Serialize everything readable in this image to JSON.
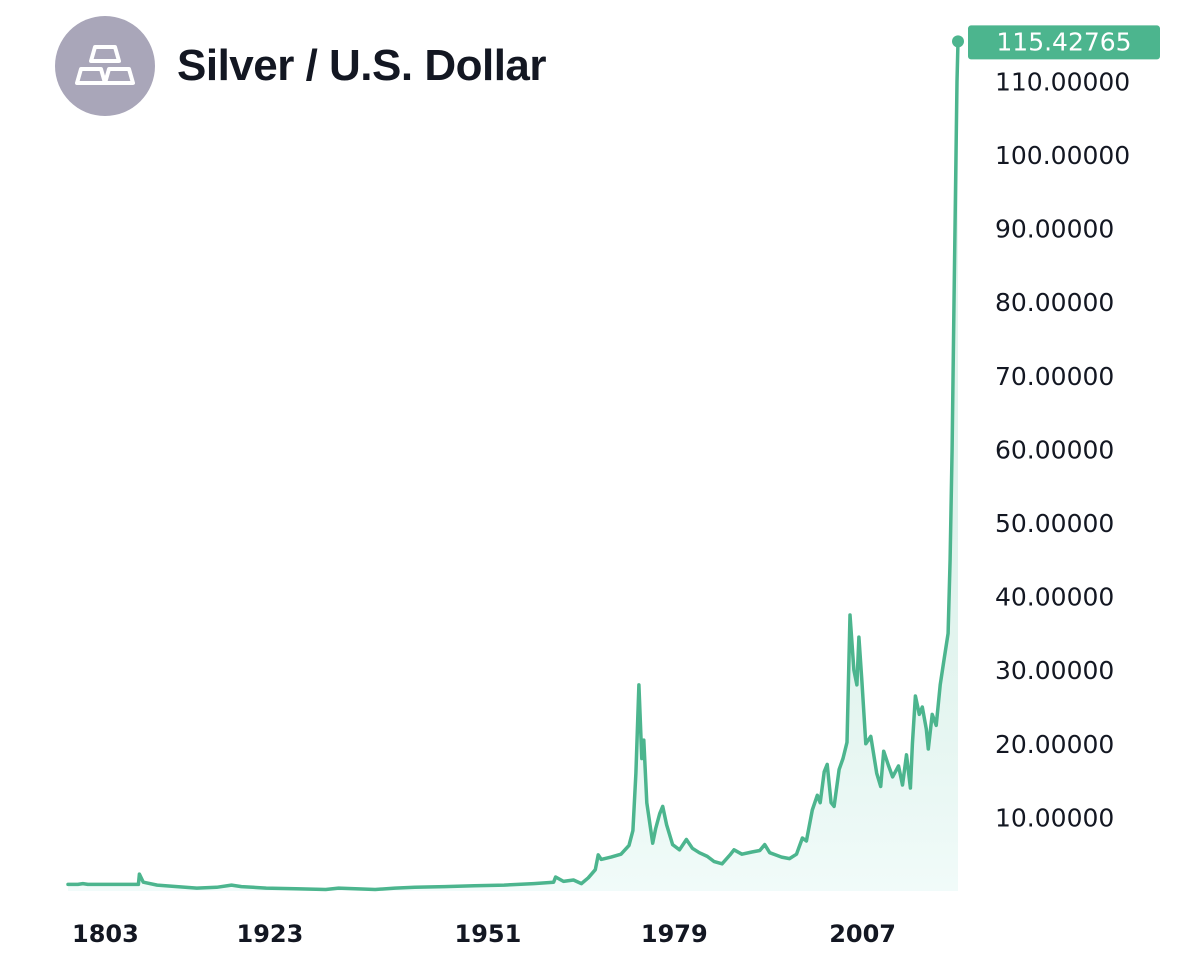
{
  "header": {
    "title": "Silver / U.S. Dollar",
    "icon": "silver-bars-icon"
  },
  "colors": {
    "line": "#4cb58e",
    "fill": "#e6f8f5",
    "label_bg": "#4cb58e",
    "logo_bg": "#a9a6b9"
  },
  "chart_data": {
    "type": "line",
    "title": "Silver / U.S. Dollar",
    "current_value_label": "115.42765",
    "current_value": 115.42765,
    "ylim": [
      0,
      115.43
    ],
    "yticks": [
      {
        "value": 10,
        "label": "10.00000"
      },
      {
        "value": 20,
        "label": "20.00000"
      },
      {
        "value": 30,
        "label": "30.00000"
      },
      {
        "value": 40,
        "label": "40.00000"
      },
      {
        "value": 50,
        "label": "50.00000"
      },
      {
        "value": 60,
        "label": "60.00000"
      },
      {
        "value": 70,
        "label": "70.00000"
      },
      {
        "value": 80,
        "label": "80.00000"
      },
      {
        "value": 90,
        "label": "90.00000"
      },
      {
        "value": 100,
        "label": "100.00000"
      },
      {
        "value": 110,
        "label": "110.00000"
      }
    ],
    "xticks": [
      {
        "index": 4,
        "label": "1803"
      },
      {
        "index": 170,
        "label": "1923"
      },
      {
        "index": 390,
        "label": "1951"
      },
      {
        "index": 578,
        "label": "1979"
      },
      {
        "index": 768,
        "label": "2007"
      }
    ],
    "series": [
      {
        "name": "Silver / U.S. Dollar",
        "points": [
          [
            0,
            0.9
          ],
          [
            10,
            0.9
          ],
          [
            15,
            1.0
          ],
          [
            20,
            0.9
          ],
          [
            60,
            0.9
          ],
          [
            71,
            0.9
          ],
          [
            72,
            2.3
          ],
          [
            76,
            1.2
          ],
          [
            90,
            0.8
          ],
          [
            110,
            0.6
          ],
          [
            130,
            0.4
          ],
          [
            150,
            0.5
          ],
          [
            165,
            0.8
          ],
          [
            175,
            0.6
          ],
          [
            200,
            0.4
          ],
          [
            230,
            0.3
          ],
          [
            260,
            0.2
          ],
          [
            273,
            0.4
          ],
          [
            290,
            0.3
          ],
          [
            310,
            0.2
          ],
          [
            330,
            0.4
          ],
          [
            350,
            0.5
          ],
          [
            380,
            0.6
          ],
          [
            410,
            0.7
          ],
          [
            440,
            0.8
          ],
          [
            470,
            1.0
          ],
          [
            490,
            1.2
          ],
          [
            492,
            1.9
          ],
          [
            500,
            1.3
          ],
          [
            510,
            1.5
          ],
          [
            518,
            1.0
          ],
          [
            525,
            1.8
          ],
          [
            532,
            2.9
          ],
          [
            535,
            4.9
          ],
          [
            538,
            4.3
          ],
          [
            548,
            4.6
          ],
          [
            558,
            5.0
          ],
          [
            566,
            6.2
          ],
          [
            570,
            8.2
          ],
          [
            573,
            16.0
          ],
          [
            576,
            28.0
          ],
          [
            579,
            18.0
          ],
          [
            581,
            20.5
          ],
          [
            584,
            12.0
          ],
          [
            590,
            6.5
          ],
          [
            593,
            8.5
          ],
          [
            597,
            10.5
          ],
          [
            600,
            11.5
          ],
          [
            604,
            9.0
          ],
          [
            610,
            6.3
          ],
          [
            617,
            5.6
          ],
          [
            624,
            7.0
          ],
          [
            630,
            5.8
          ],
          [
            637,
            5.2
          ],
          [
            645,
            4.7
          ],
          [
            652,
            4.0
          ],
          [
            660,
            3.7
          ],
          [
            668,
            4.9
          ],
          [
            672,
            5.6
          ],
          [
            680,
            5.0
          ],
          [
            690,
            5.3
          ],
          [
            698,
            5.5
          ],
          [
            703,
            6.3
          ],
          [
            708,
            5.2
          ],
          [
            714,
            4.9
          ],
          [
            720,
            4.6
          ],
          [
            728,
            4.4
          ],
          [
            735,
            5.0
          ],
          [
            741,
            7.2
          ],
          [
            745,
            6.8
          ],
          [
            751,
            11.0
          ],
          [
            756,
            13.0
          ],
          [
            759,
            12.0
          ],
          [
            763,
            16.2
          ],
          [
            766,
            17.2
          ],
          [
            770,
            12.0
          ],
          [
            773,
            11.5
          ],
          [
            778,
            16.5
          ],
          [
            782,
            18.0
          ],
          [
            786,
            20.2
          ],
          [
            789,
            37.5
          ],
          [
            793,
            30.0
          ],
          [
            796,
            28.0
          ],
          [
            798,
            34.5
          ],
          [
            801,
            28.5
          ],
          [
            805,
            20.0
          ],
          [
            810,
            21.0
          ],
          [
            816,
            16.0
          ],
          [
            820,
            14.2
          ],
          [
            823,
            19.0
          ],
          [
            828,
            17.0
          ],
          [
            832,
            15.5
          ],
          [
            838,
            17.0
          ],
          [
            842,
            14.4
          ],
          [
            846,
            18.5
          ],
          [
            850,
            14.0
          ],
          [
            852,
            20.0
          ],
          [
            855,
            26.5
          ],
          [
            859,
            24.0
          ],
          [
            862,
            25.0
          ],
          [
            866,
            22.0
          ],
          [
            868,
            19.3
          ],
          [
            872,
            24.0
          ],
          [
            876,
            22.5
          ],
          [
            880,
            28.0
          ],
          [
            884,
            31.5
          ],
          [
            888,
            35.0
          ],
          [
            890,
            45.0
          ],
          [
            892,
            60.0
          ],
          [
            894,
            80.0
          ],
          [
            896,
            100.0
          ],
          [
            897,
            110.0
          ],
          [
            898,
            115.43
          ]
        ]
      }
    ]
  }
}
